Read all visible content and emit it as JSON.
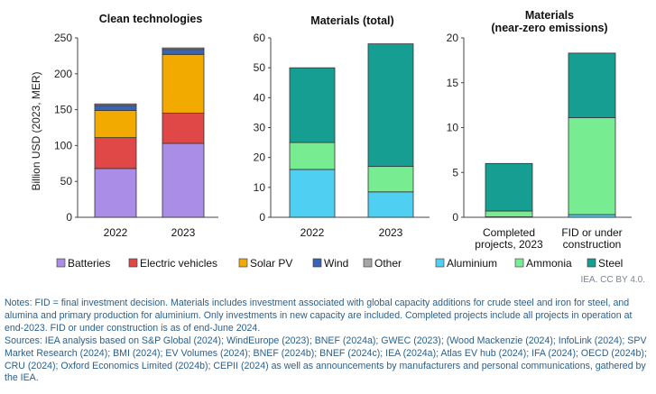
{
  "colors": {
    "Batteries": "#a98de6",
    "Electric vehicles": "#e04848",
    "Solar PV": "#f2a900",
    "Wind": "#3a64b5",
    "Other": "#a6a6a6",
    "Aluminium": "#4fd0f2",
    "Ammonia": "#77ec90",
    "Steel": "#169e93"
  },
  "chart_data": [
    {
      "type": "bar",
      "stacked": true,
      "title": "Clean technologies",
      "ylabel": "Billion USD (2023, MER)",
      "categories": [
        "2022",
        "2023"
      ],
      "ylim": [
        0,
        250
      ],
      "yticks": [
        0,
        50,
        100,
        150,
        200,
        250
      ],
      "series": [
        {
          "name": "Batteries",
          "values": [
            68,
            103
          ]
        },
        {
          "name": "Electric vehicles",
          "values": [
            43,
            42
          ]
        },
        {
          "name": "Solar PV",
          "values": [
            38,
            82
          ]
        },
        {
          "name": "Wind",
          "values": [
            7,
            7
          ]
        },
        {
          "name": "Other",
          "values": [
            2,
            2
          ]
        }
      ]
    },
    {
      "type": "bar",
      "stacked": true,
      "title": "Materials (total)",
      "categories": [
        "2022",
        "2023"
      ],
      "ylim": [
        0,
        60
      ],
      "yticks": [
        0,
        10,
        20,
        30,
        40,
        50,
        60
      ],
      "series": [
        {
          "name": "Aluminium",
          "values": [
            16,
            8.5
          ]
        },
        {
          "name": "Ammonia",
          "values": [
            9,
            8.5
          ]
        },
        {
          "name": "Steel",
          "values": [
            25,
            41
          ]
        }
      ]
    },
    {
      "type": "bar",
      "stacked": true,
      "title": "Materials\n(near-zero emissions)",
      "categories": [
        "Completed\nprojects, 2023",
        "FID or under\nconstruction"
      ],
      "ylim": [
        0,
        20
      ],
      "yticks": [
        0,
        5,
        10,
        15,
        20
      ],
      "series": [
        {
          "name": "Aluminium",
          "values": [
            0.05,
            0.3
          ]
        },
        {
          "name": "Ammonia",
          "values": [
            0.65,
            10.8
          ]
        },
        {
          "name": "Steel",
          "values": [
            5.3,
            7.2
          ]
        }
      ]
    }
  ],
  "legend": [
    "Batteries",
    "Electric vehicles",
    "Solar PV",
    "Wind",
    "Other",
    "Aluminium",
    "Ammonia",
    "Steel"
  ],
  "credit": "IEA. CC BY 4.0.",
  "notes": "Notes: FID = final investment decision. Materials includes investment associated with global capacity additions for crude steel and iron for steel, and alumina and primary production for aluminium. Only investments in new capacity are included. Completed projects include all projects in operation at end-2023. FID or under construction is as of end-June 2024.",
  "sources": "Sources: IEA analysis based on S&P Global (2024); WindEurope (2023); BNEF (2024a); GWEC (2023); (Wood Mackenzie (2024); InfoLink (2024); SPV Market Research (2024); BMI (2024); EV Volumes (2024); BNEF (2024b); BNEF (2024c); IEA (2024a); Atlas EV hub (2024); IFA (2024); OECD (2024b); CRU (2024); Oxford Economics Limited (2024b); CEPII (2024) as well as announcements by manufacturers and personal communications, gathered by the IEA."
}
